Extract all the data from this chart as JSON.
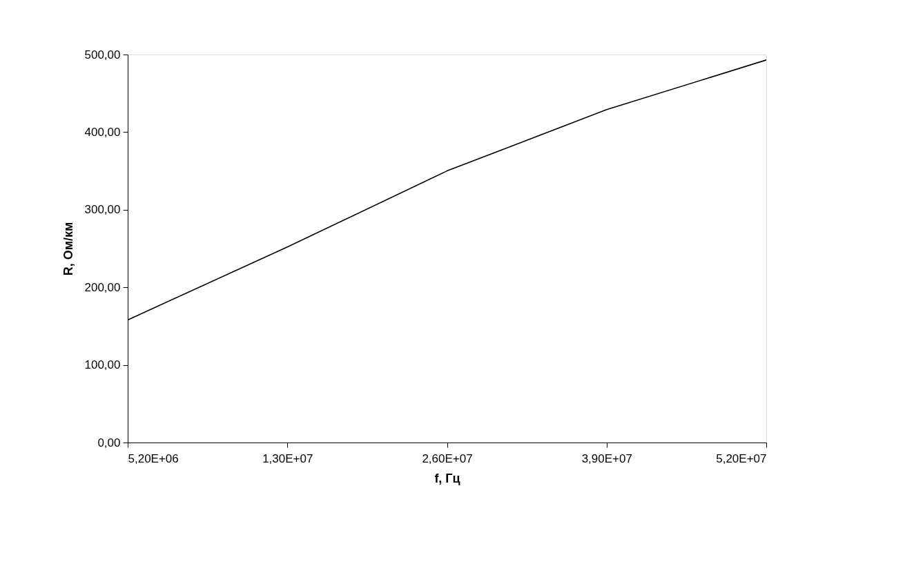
{
  "chart_data": {
    "type": "line",
    "xlabel": "f, Гц",
    "ylabel": "R, Ом/км",
    "categories": [
      "5,20E+06",
      "1,30E+07",
      "2,60E+07",
      "3,90E+07",
      "5,20E+07"
    ],
    "series": [
      {
        "color": "#000000",
        "values": [
          158,
          252,
          350,
          429,
          493
        ]
      }
    ],
    "ylim": [
      0,
      500
    ],
    "yticks": [
      {
        "value": 0,
        "label": "0,00"
      },
      {
        "value": 100,
        "label": "100,00"
      },
      {
        "value": 200,
        "label": "200,00"
      },
      {
        "value": 300,
        "label": "300,00"
      },
      {
        "value": 400,
        "label": "400,00"
      },
      {
        "value": 500,
        "label": "500,00"
      }
    ],
    "grid": false,
    "legend": false,
    "marker": "none",
    "line_style": "solid"
  }
}
